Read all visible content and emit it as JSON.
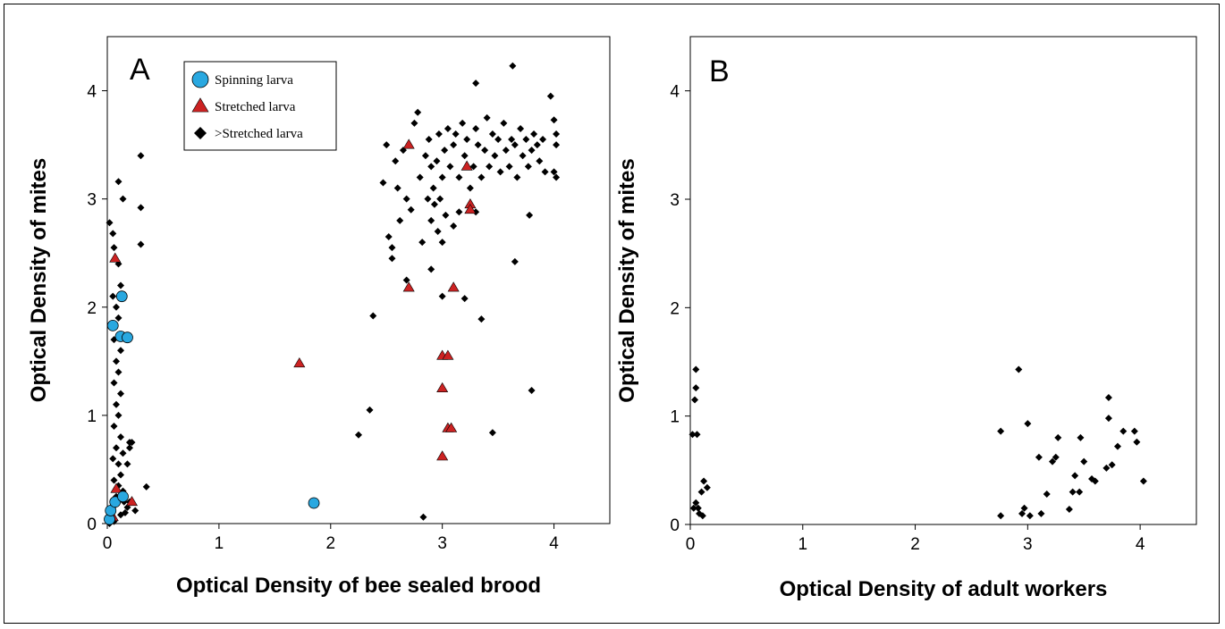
{
  "chart_data": [
    {
      "type": "scatter",
      "panel_label": "A",
      "xlabel": "Optical Density of bee sealed brood",
      "ylabel": "Optical Density of mites",
      "xlim": [
        0,
        4.5
      ],
      "ylim": [
        0,
        4.5
      ],
      "xticks": [
        "0",
        "1",
        "2",
        "3",
        "4"
      ],
      "yticks": [
        "0",
        "1",
        "2",
        "3",
        "4"
      ],
      "legend_position": "top-left",
      "series": [
        {
          "name": "Spinning larva",
          "marker": "circle",
          "color": "#29a8e0",
          "points": [
            [
              0.02,
              0.04
            ],
            [
              0.03,
              0.12
            ],
            [
              0.07,
              0.2
            ],
            [
              0.14,
              0.25
            ],
            [
              0.05,
              1.83
            ],
            [
              0.13,
              2.1
            ],
            [
              0.12,
              1.73
            ],
            [
              0.18,
              1.72
            ],
            [
              1.85,
              0.19
            ]
          ]
        },
        {
          "name": "Stretched larva",
          "marker": "triangle",
          "color": "#cc2222",
          "points": [
            [
              0.07,
              2.45
            ],
            [
              0.08,
              0.32
            ],
            [
              0.05,
              0.06
            ],
            [
              0.22,
              0.2
            ],
            [
              1.72,
              1.48
            ],
            [
              2.7,
              3.5
            ],
            [
              2.7,
              2.18
            ],
            [
              3.22,
              3.3
            ],
            [
              3.25,
              2.95
            ],
            [
              3.25,
              2.9
            ],
            [
              3.1,
              2.18
            ],
            [
              3.0,
              1.55
            ],
            [
              3.05,
              1.55
            ],
            [
              3.0,
              1.25
            ],
            [
              3.05,
              0.88
            ],
            [
              3.08,
              0.88
            ],
            [
              3.0,
              0.62
            ]
          ]
        },
        {
          "name": ">Stretched larva",
          "marker": "diamond",
          "color": "#000000",
          "points": [
            [
              0.02,
              2.78
            ],
            [
              0.05,
              2.68
            ],
            [
              0.1,
              3.16
            ],
            [
              0.14,
              3.0
            ],
            [
              0.06,
              2.55
            ],
            [
              0.1,
              2.4
            ],
            [
              0.12,
              2.2
            ],
            [
              0.05,
              2.1
            ],
            [
              0.08,
              2.0
            ],
            [
              0.1,
              1.9
            ],
            [
              0.06,
              1.7
            ],
            [
              0.12,
              1.6
            ],
            [
              0.08,
              1.5
            ],
            [
              0.1,
              1.4
            ],
            [
              0.06,
              1.3
            ],
            [
              0.12,
              1.2
            ],
            [
              0.08,
              1.1
            ],
            [
              0.1,
              1.0
            ],
            [
              0.06,
              0.9
            ],
            [
              0.12,
              0.8
            ],
            [
              0.08,
              0.7
            ],
            [
              0.14,
              0.65
            ],
            [
              0.05,
              0.6
            ],
            [
              0.1,
              0.55
            ],
            [
              0.12,
              0.45
            ],
            [
              0.06,
              0.4
            ],
            [
              0.1,
              0.35
            ],
            [
              0.14,
              0.3
            ],
            [
              0.08,
              0.25
            ],
            [
              0.2,
              0.75
            ],
            [
              0.22,
              0.75
            ],
            [
              0.2,
              0.7
            ],
            [
              0.18,
              0.55
            ],
            [
              0.15,
              0.2
            ],
            [
              0.16,
              0.1
            ],
            [
              0.12,
              0.08
            ],
            [
              0.18,
              0.15
            ],
            [
              0.05,
              0.15
            ],
            [
              0.2,
              0.2
            ],
            [
              0.25,
              0.12
            ],
            [
              0.3,
              3.4
            ],
            [
              0.3,
              2.92
            ],
            [
              0.3,
              2.58
            ],
            [
              0.35,
              0.34
            ],
            [
              0.02,
              0.0
            ],
            [
              0.06,
              0.02
            ],
            [
              2.25,
              0.82
            ],
            [
              2.35,
              1.05
            ],
            [
              2.38,
              1.92
            ],
            [
              2.47,
              3.15
            ],
            [
              2.5,
              3.5
            ],
            [
              2.52,
              2.65
            ],
            [
              2.55,
              2.55
            ],
            [
              2.58,
              3.35
            ],
            [
              2.6,
              3.1
            ],
            [
              2.62,
              2.8
            ],
            [
              2.65,
              3.45
            ],
            [
              2.68,
              3.0
            ],
            [
              2.72,
              2.9
            ],
            [
              2.75,
              3.7
            ],
            [
              2.78,
              3.8
            ],
            [
              2.8,
              3.2
            ],
            [
              2.82,
              2.6
            ],
            [
              2.85,
              3.4
            ],
            [
              2.87,
              3.0
            ],
            [
              2.88,
              3.55
            ],
            [
              2.9,
              3.3
            ],
            [
              2.9,
              2.8
            ],
            [
              2.92,
              3.1
            ],
            [
              2.93,
              2.95
            ],
            [
              2.95,
              3.35
            ],
            [
              2.96,
              2.7
            ],
            [
              2.97,
              3.6
            ],
            [
              2.98,
              3.0
            ],
            [
              3.0,
              2.6
            ],
            [
              3.0,
              3.2
            ],
            [
              3.02,
              3.45
            ],
            [
              3.03,
              2.85
            ],
            [
              3.05,
              3.65
            ],
            [
              3.07,
              3.3
            ],
            [
              3.1,
              2.75
            ],
            [
              3.1,
              3.5
            ],
            [
              3.12,
              3.6
            ],
            [
              3.15,
              3.2
            ],
            [
              3.18,
              3.7
            ],
            [
              3.2,
              3.4
            ],
            [
              3.22,
              3.55
            ],
            [
              3.25,
              3.1
            ],
            [
              3.28,
              3.3
            ],
            [
              3.3,
              3.65
            ],
            [
              3.32,
              3.5
            ],
            [
              3.35,
              3.2
            ],
            [
              3.38,
              3.45
            ],
            [
              3.4,
              3.75
            ],
            [
              3.42,
              3.3
            ],
            [
              3.45,
              3.6
            ],
            [
              3.47,
              3.4
            ],
            [
              3.5,
              3.55
            ],
            [
              3.52,
              3.25
            ],
            [
              3.55,
              3.7
            ],
            [
              3.57,
              3.45
            ],
            [
              3.6,
              3.3
            ],
            [
              3.62,
              3.55
            ],
            [
              3.63,
              4.23
            ],
            [
              3.65,
              3.5
            ],
            [
              3.67,
              3.2
            ],
            [
              3.7,
              3.65
            ],
            [
              3.72,
              3.4
            ],
            [
              3.75,
              3.55
            ],
            [
              3.77,
              3.3
            ],
            [
              3.8,
              3.45
            ],
            [
              3.82,
              3.6
            ],
            [
              3.85,
              3.5
            ],
            [
              3.87,
              3.35
            ],
            [
              3.9,
              3.55
            ],
            [
              3.92,
              3.25
            ],
            [
              3.97,
              3.95
            ],
            [
              4.0,
              3.73
            ],
            [
              4.02,
              3.6
            ],
            [
              4.02,
              3.5
            ],
            [
              4.0,
              3.25
            ],
            [
              4.02,
              3.2
            ],
            [
              3.3,
              4.07
            ],
            [
              3.0,
              2.1
            ],
            [
              3.2,
              2.08
            ],
            [
              3.35,
              1.89
            ],
            [
              2.9,
              2.35
            ],
            [
              3.8,
              1.23
            ],
            [
              3.45,
              0.84
            ],
            [
              2.83,
              0.06
            ],
            [
              3.65,
              2.42
            ],
            [
              3.78,
              2.85
            ],
            [
              3.15,
              2.88
            ],
            [
              3.3,
              2.88
            ],
            [
              2.68,
              2.25
            ],
            [
              2.55,
              2.45
            ]
          ]
        }
      ]
    },
    {
      "type": "scatter",
      "panel_label": "B",
      "xlabel": "Optical Density of adult workers",
      "ylabel": "Optical Density of mites",
      "xlim": [
        0,
        4.5
      ],
      "ylim": [
        0,
        4.5
      ],
      "xticks": [
        "0",
        "1",
        "2",
        "3",
        "4"
      ],
      "yticks": [
        "0",
        "1",
        "2",
        "3",
        "4"
      ],
      "series": [
        {
          "marker": "diamond",
          "color": "#000000",
          "points": [
            [
              0.05,
              1.43
            ],
            [
              0.05,
              1.26
            ],
            [
              0.04,
              1.15
            ],
            [
              0.02,
              0.83
            ],
            [
              0.06,
              0.83
            ],
            [
              0.12,
              0.4
            ],
            [
              0.15,
              0.34
            ],
            [
              0.1,
              0.3
            ],
            [
              0.05,
              0.2
            ],
            [
              0.07,
              0.15
            ],
            [
              0.03,
              0.15
            ],
            [
              0.08,
              0.1
            ],
            [
              0.11,
              0.08
            ],
            [
              2.76,
              0.86
            ],
            [
              2.76,
              0.08
            ],
            [
              2.92,
              1.43
            ],
            [
              2.95,
              0.1
            ],
            [
              2.97,
              0.15
            ],
            [
              3.0,
              0.93
            ],
            [
              3.02,
              0.08
            ],
            [
              3.1,
              0.62
            ],
            [
              3.12,
              0.1
            ],
            [
              3.17,
              0.28
            ],
            [
              3.22,
              0.58
            ],
            [
              3.25,
              0.62
            ],
            [
              3.27,
              0.8
            ],
            [
              3.37,
              0.14
            ],
            [
              3.4,
              0.3
            ],
            [
              3.42,
              0.45
            ],
            [
              3.46,
              0.3
            ],
            [
              3.47,
              0.8
            ],
            [
              3.5,
              0.58
            ],
            [
              3.57,
              0.42
            ],
            [
              3.6,
              0.4
            ],
            [
              3.7,
              0.52
            ],
            [
              3.72,
              0.98
            ],
            [
              3.72,
              1.17
            ],
            [
              3.75,
              0.55
            ],
            [
              3.8,
              0.72
            ],
            [
              3.85,
              0.86
            ],
            [
              3.95,
              0.86
            ],
            [
              3.97,
              0.76
            ],
            [
              4.03,
              0.4
            ]
          ]
        }
      ]
    }
  ]
}
